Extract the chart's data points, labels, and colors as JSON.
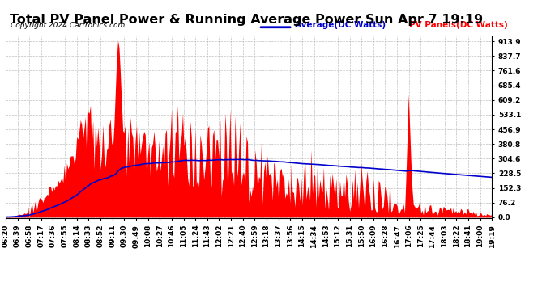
{
  "title": "Total PV Panel Power & Running Average Power Sun Apr 7 19:19",
  "copyright": "Copyright 2024 Cartronics.com",
  "legend_avg": "Average(DC Watts)",
  "legend_pv": "PV Panels(DC Watts)",
  "yticks": [
    0.0,
    76.2,
    152.3,
    228.5,
    304.6,
    380.8,
    456.9,
    533.1,
    609.2,
    685.4,
    761.6,
    837.7,
    913.9
  ],
  "ymax": 940,
  "ymin": -5,
  "bg_color": "#ffffff",
  "plot_bg_color": "#ffffff",
  "fill_color": "#ff0000",
  "line_color": "#0000cc",
  "grid_color": "#b0b0b0",
  "title_fontsize": 11.5,
  "tick_fontsize": 6.5,
  "n_points": 391,
  "xtick_labels": [
    "06:20",
    "06:39",
    "06:58",
    "07:17",
    "07:36",
    "07:55",
    "08:14",
    "08:33",
    "08:52",
    "09:11",
    "09:30",
    "09:49",
    "10:08",
    "10:27",
    "10:46",
    "11:05",
    "11:24",
    "11:43",
    "12:02",
    "12:21",
    "12:40",
    "12:59",
    "13:18",
    "13:37",
    "13:56",
    "14:15",
    "14:34",
    "14:53",
    "15:12",
    "15:31",
    "15:50",
    "16:09",
    "16:28",
    "16:47",
    "17:06",
    "17:25",
    "17:44",
    "18:03",
    "18:22",
    "18:41",
    "19:00",
    "19:19"
  ]
}
